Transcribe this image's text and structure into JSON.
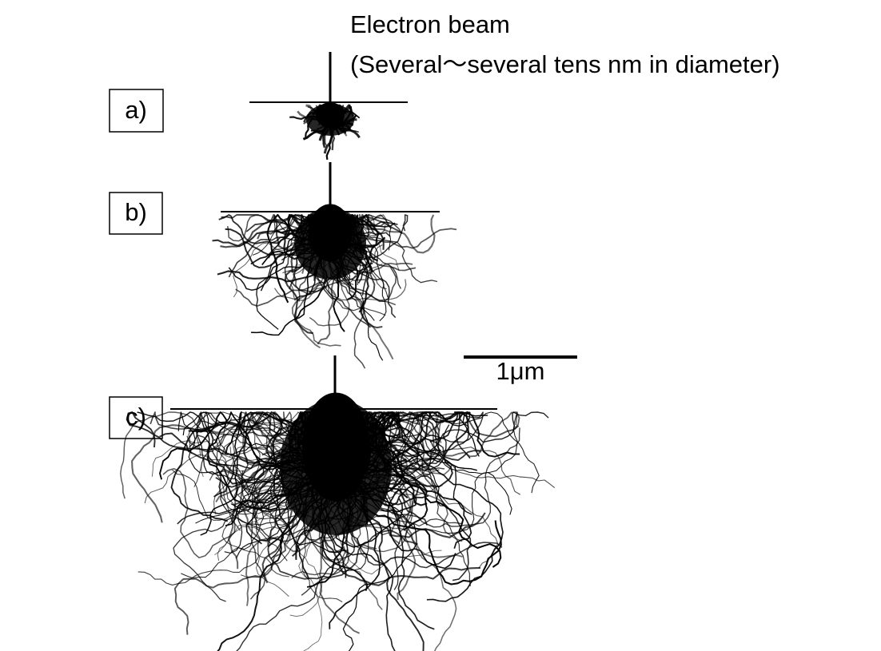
{
  "beam": {
    "label": "Electron beam",
    "note": "(Several～several tens nm in diameter)"
  },
  "panels": [
    {
      "label": "a)"
    },
    {
      "label": "b)"
    },
    {
      "label": "c)"
    }
  ],
  "scale_bar": {
    "label": "1μm"
  }
}
